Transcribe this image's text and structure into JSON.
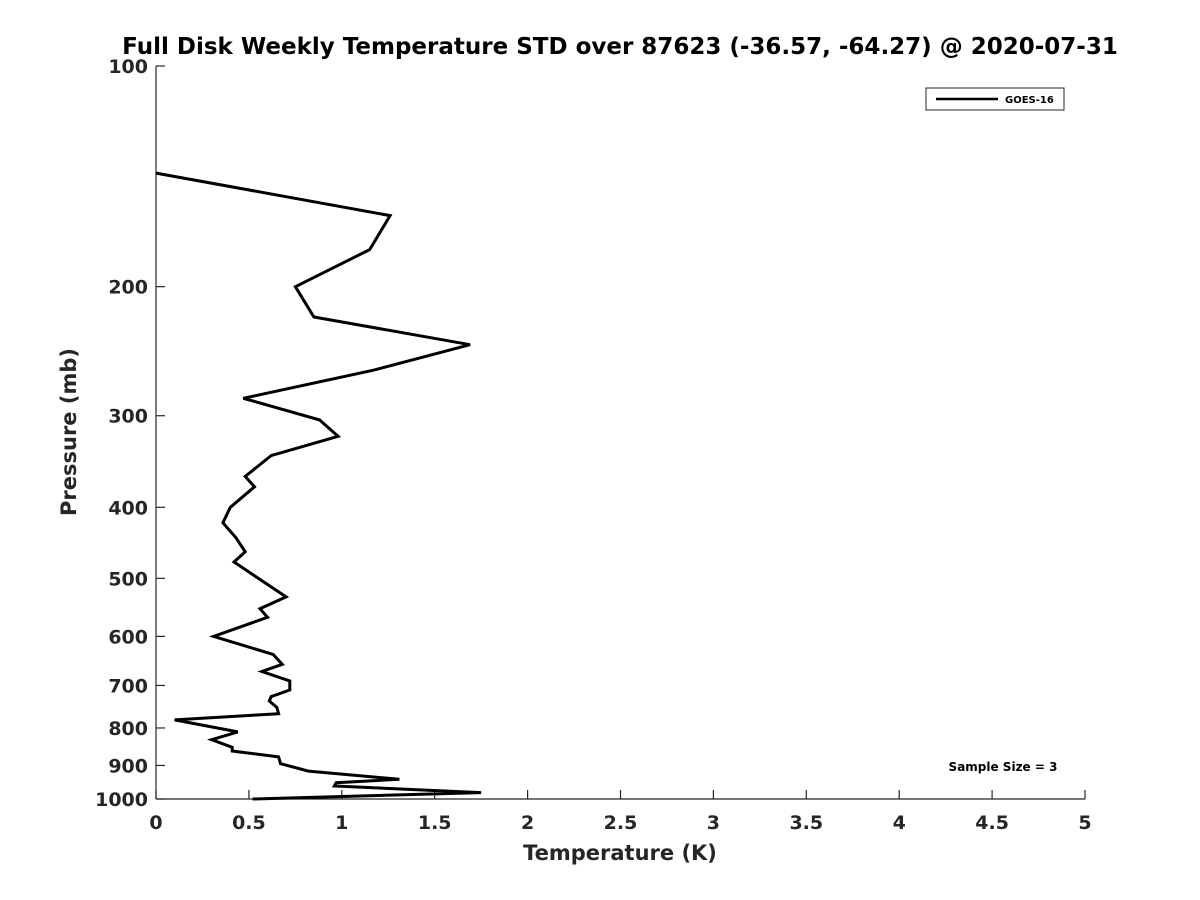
{
  "chart_data": {
    "type": "line",
    "title": "Full Disk Weekly Temperature STD over 87623 (-36.57, -64.27) @ 2020-07-31",
    "xlabel": "Temperature (K)",
    "ylabel": "Pressure (mb)",
    "xlim": [
      0,
      5
    ],
    "ylim": [
      100,
      1000
    ],
    "y_scale": "log",
    "y_reversed": true,
    "grid": false,
    "legend_position": "top-right",
    "x_ticks": [
      0,
      0.5,
      1,
      1.5,
      2,
      2.5,
      3,
      3.5,
      4,
      4.5,
      5
    ],
    "x_tick_labels": [
      "0",
      "0.5",
      "1",
      "1.5",
      "2",
      "2.5",
      "3",
      "3.5",
      "4",
      "4.5",
      "5"
    ],
    "y_ticks": [
      100,
      200,
      300,
      400,
      500,
      600,
      700,
      800,
      900,
      1000
    ],
    "y_tick_labels": [
      "100",
      "200",
      "300",
      "400",
      "500",
      "600",
      "700",
      "800",
      "900",
      "1000"
    ],
    "annotation": "Sample Size = 3",
    "series": [
      {
        "name": "GOES-16",
        "color": "#000000",
        "points": [
          [
            0.0,
            140
          ],
          [
            1.26,
            160
          ],
          [
            1.15,
            178
          ],
          [
            0.75,
            200
          ],
          [
            0.85,
            220
          ],
          [
            1.69,
            240
          ],
          [
            1.17,
            260
          ],
          [
            0.47,
            284
          ],
          [
            0.88,
            304
          ],
          [
            0.98,
            320
          ],
          [
            0.62,
            340
          ],
          [
            0.48,
            363
          ],
          [
            0.53,
            375
          ],
          [
            0.4,
            400
          ],
          [
            0.36,
            420
          ],
          [
            0.43,
            440
          ],
          [
            0.48,
            460
          ],
          [
            0.42,
            475
          ],
          [
            0.7,
            530
          ],
          [
            0.56,
            550
          ],
          [
            0.6,
            565
          ],
          [
            0.31,
            600
          ],
          [
            0.63,
            635
          ],
          [
            0.68,
            655
          ],
          [
            0.57,
            670
          ],
          [
            0.72,
            690
          ],
          [
            0.72,
            710
          ],
          [
            0.62,
            725
          ],
          [
            0.61,
            735
          ],
          [
            0.65,
            750
          ],
          [
            0.66,
            765
          ],
          [
            0.1,
            780
          ],
          [
            0.44,
            810
          ],
          [
            0.3,
            830
          ],
          [
            0.41,
            850
          ],
          [
            0.41,
            860
          ],
          [
            0.66,
            876
          ],
          [
            0.67,
            895
          ],
          [
            0.82,
            916
          ],
          [
            1.31,
            940
          ],
          [
            0.97,
            950
          ],
          [
            0.96,
            960
          ],
          [
            1.75,
            980
          ],
          [
            0.52,
            1000
          ]
        ]
      }
    ]
  }
}
